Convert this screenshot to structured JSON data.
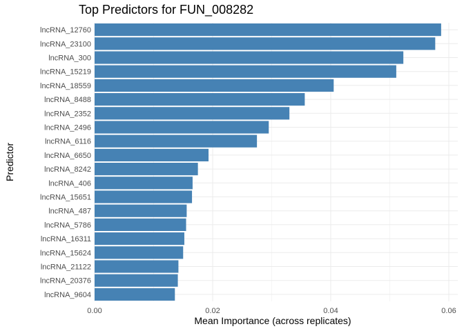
{
  "chart_data": {
    "type": "bar",
    "orientation": "horizontal",
    "title": "Top Predictors for FUN_008282",
    "xlabel": "Mean Importance (across replicates)",
    "ylabel": "Predictor",
    "categories": [
      "lncRNA_12760",
      "lncRNA_23100",
      "lncRNA_300",
      "lncRNA_15219",
      "lncRNA_18559",
      "lncRNA_8488",
      "lncRNA_2352",
      "lncRNA_2496",
      "lncRNA_6116",
      "lncRNA_6650",
      "lncRNA_8242",
      "lncRNA_406",
      "lncRNA_15651",
      "lncRNA_487",
      "lncRNA_5786",
      "lncRNA_16311",
      "lncRNA_15624",
      "lncRNA_21122",
      "lncRNA_20376",
      "lncRNA_9604"
    ],
    "values": [
      0.0587,
      0.0577,
      0.0523,
      0.0511,
      0.0405,
      0.0356,
      0.033,
      0.0295,
      0.0275,
      0.0193,
      0.0175,
      0.0166,
      0.0165,
      0.0156,
      0.0155,
      0.0152,
      0.015,
      0.0142,
      0.0141,
      0.0136
    ],
    "xlim": [
      0,
      0.06
    ],
    "xticks": [
      "0.00",
      "0.02",
      "0.04",
      "0.06"
    ],
    "bar_color": "#4682B4",
    "grid": true,
    "legend": "none"
  }
}
